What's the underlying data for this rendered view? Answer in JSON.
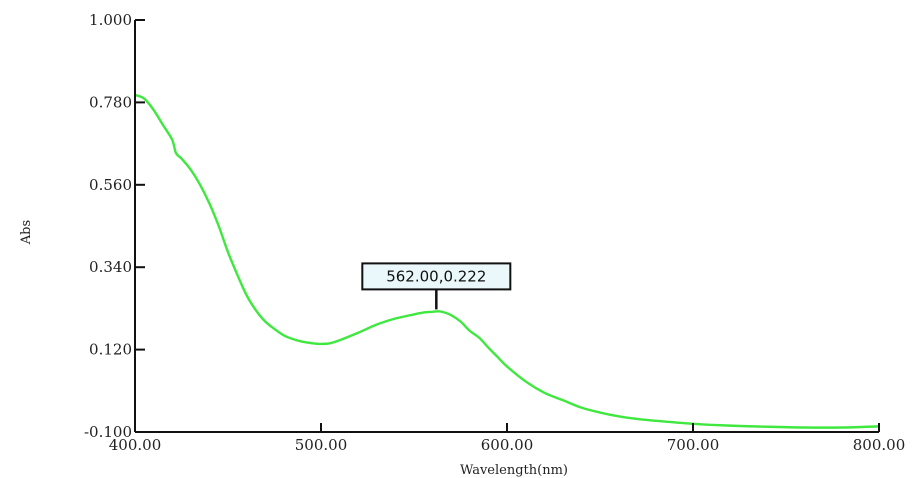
{
  "chart_data": {
    "type": "line",
    "xlabel": "Wavelength(nm)",
    "ylabel": "Abs",
    "xlim": [
      400,
      800
    ],
    "ylim": [
      -0.1,
      1.0
    ],
    "x_ticks": [
      {
        "value": 400,
        "label": "400.00"
      },
      {
        "value": 500,
        "label": "500.00"
      },
      {
        "value": 600,
        "label": "600.00"
      },
      {
        "value": 700,
        "label": "700.00"
      },
      {
        "value": 800,
        "label": "800.00"
      }
    ],
    "y_ticks": [
      {
        "value": -0.1,
        "label": "-0.100"
      },
      {
        "value": 0.12,
        "label": "0.120"
      },
      {
        "value": 0.34,
        "label": "0.340"
      },
      {
        "value": 0.56,
        "label": "0.560"
      },
      {
        "value": 0.78,
        "label": "0.780"
      },
      {
        "value": 1.0,
        "label": "1.000"
      }
    ],
    "grid": false,
    "series": [
      {
        "color": "#3ee83e",
        "x": [
          400,
          405,
          410,
          415,
          420,
          422,
          425,
          430,
          435,
          440,
          445,
          450,
          455,
          460,
          465,
          470,
          475,
          480,
          485,
          490,
          495,
          500,
          505,
          510,
          520,
          530,
          540,
          550,
          555,
          560,
          562,
          565,
          570,
          575,
          580,
          585,
          590,
          595,
          600,
          610,
          620,
          630,
          640,
          650,
          660,
          670,
          680,
          700,
          720,
          740,
          760,
          780,
          800
        ],
        "y": [
          0.8,
          0.79,
          0.76,
          0.72,
          0.68,
          0.645,
          0.63,
          0.6,
          0.56,
          0.51,
          0.45,
          0.38,
          0.32,
          0.265,
          0.225,
          0.195,
          0.175,
          0.158,
          0.148,
          0.141,
          0.137,
          0.135,
          0.137,
          0.145,
          0.165,
          0.187,
          0.203,
          0.214,
          0.219,
          0.221,
          0.222,
          0.221,
          0.212,
          0.195,
          0.17,
          0.152,
          0.125,
          0.1,
          0.075,
          0.035,
          0.005,
          -0.015,
          -0.035,
          -0.048,
          -0.058,
          -0.065,
          -0.07,
          -0.078,
          -0.083,
          -0.086,
          -0.088,
          -0.088,
          -0.085
        ]
      }
    ],
    "annotation": {
      "x": 562,
      "y": 0.222,
      "text": "562.00,0.222"
    }
  }
}
